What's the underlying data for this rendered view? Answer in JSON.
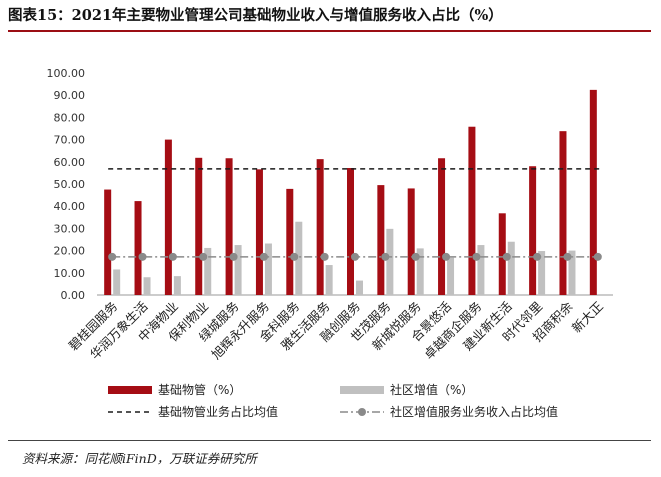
{
  "title": "图表15：2021年主要物业管理公司基础物业收入与增值服务收入占比（%）",
  "source": "资料来源：同花顺iFinD，万联证券研究所",
  "chart_data": {
    "type": "bar",
    "categories": [
      "碧桂园服务",
      "华润万象生活",
      "中海物业",
      "保利物业",
      "绿城服务",
      "旭辉永升服务",
      "金科服务",
      "雅生活服务",
      "融创服务",
      "世茂服务",
      "新城悦服务",
      "合景悠活",
      "卓越商企服务",
      "建业新生活",
      "时代邻里",
      "招商积余",
      "新大正"
    ],
    "series": [
      {
        "name": "基础物管（%）",
        "type": "bar",
        "color": "#a50d14",
        "values": [
          47.5,
          42.3,
          70.0,
          61.8,
          61.6,
          56.6,
          47.8,
          61.2,
          57.2,
          49.5,
          48.0,
          61.6,
          75.8,
          36.8,
          58.0,
          73.8,
          92.4
        ]
      },
      {
        "name": "社区增值（%）",
        "type": "bar",
        "color": "#c0c0c0",
        "values": [
          11.5,
          8.0,
          8.5,
          21.2,
          22.5,
          23.2,
          33.0,
          13.5,
          6.5,
          29.8,
          21.0,
          16.8,
          22.5,
          24.0,
          19.8,
          20.0,
          null
        ]
      },
      {
        "name": "基础物管业务占比均值",
        "type": "line",
        "color": "#1a1a1a",
        "value": 56.8
      },
      {
        "name": "社区增值服务业务收入占比均值",
        "type": "line",
        "color": "#8a8a8a",
        "value": 17.2
      }
    ],
    "y_ticks": [
      "0.00",
      "10.00",
      "20.00",
      "30.00",
      "40.00",
      "50.00",
      "60.00",
      "70.00",
      "80.00",
      "90.00",
      "100.00"
    ],
    "ylim": [
      0,
      100
    ],
    "xlabel": "",
    "ylabel": "",
    "grid": false,
    "legend_position": "bottom"
  }
}
